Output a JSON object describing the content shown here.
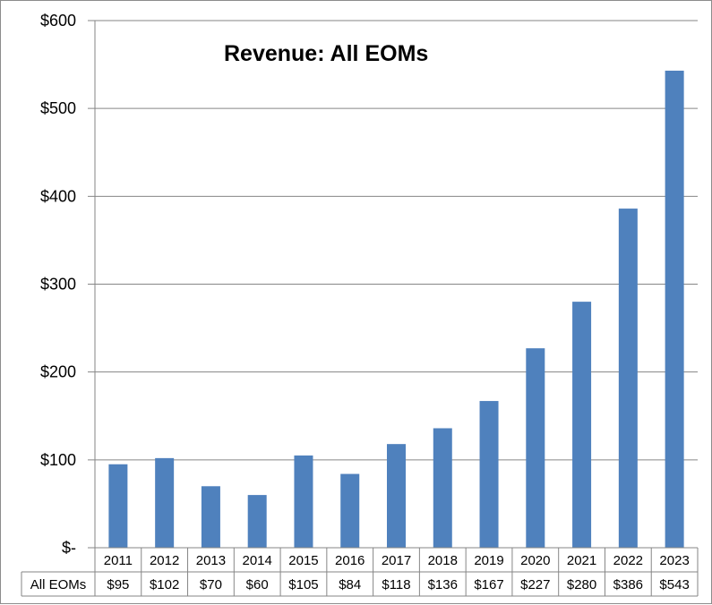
{
  "chart_data": {
    "type": "bar",
    "title": "Revenue: All EOMs",
    "categories": [
      "2011",
      "2012",
      "2013",
      "2014",
      "2015",
      "2016",
      "2017",
      "2018",
      "2019",
      "2020",
      "2021",
      "2022",
      "2023"
    ],
    "series": [
      {
        "name": "All EOMs",
        "values": [
          95,
          102,
          70,
          60,
          105,
          84,
          118,
          136,
          167,
          227,
          280,
          386,
          543
        ],
        "labels": [
          "$95",
          "$102",
          "$70",
          "$60",
          "$105",
          "$84",
          "$118",
          "$136",
          "$167",
          "$227",
          "$280",
          "$386",
          "$543"
        ],
        "color": "#4f81bd"
      }
    ],
    "y_ticks": [
      "$-",
      "$100",
      "$200",
      "$300",
      "$400",
      "$500",
      "$600"
    ],
    "ylim": [
      0,
      600
    ],
    "grid": true,
    "legend": "data-table-left"
  }
}
